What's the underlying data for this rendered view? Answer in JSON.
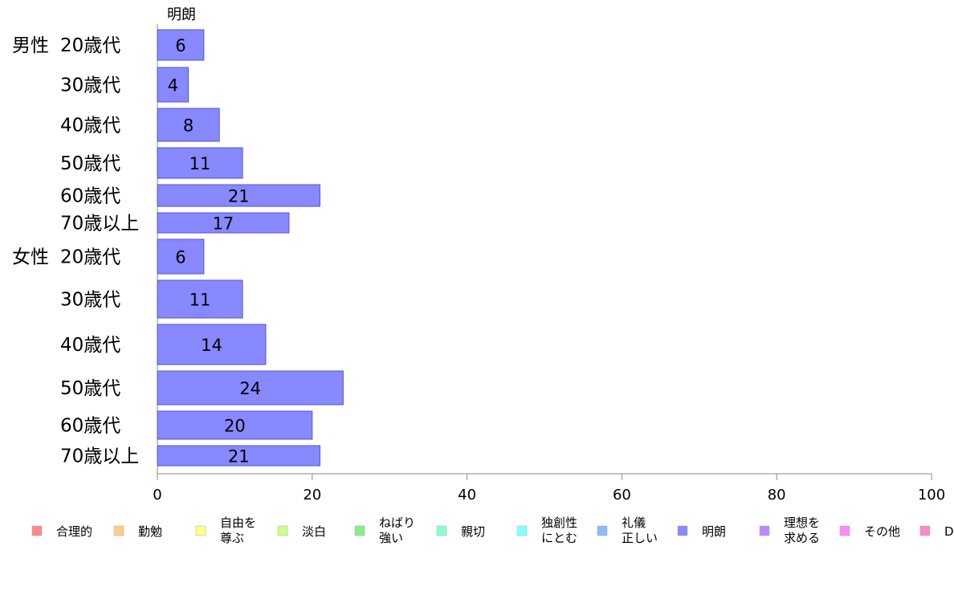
{
  "chart_data": {
    "type": "bar",
    "orientation": "horizontal",
    "title": "",
    "series_title": "明朗",
    "groups": [
      {
        "name": "男性",
        "categories": [
          "20歳代",
          "30歳代",
          "40歳代",
          "50歳代",
          "60歳代",
          "70歳以上"
        ]
      },
      {
        "name": "女性",
        "categories": [
          "20歳代",
          "30歳代",
          "40歳代",
          "50歳代",
          "60歳代",
          "70歳以上"
        ]
      }
    ],
    "series": [
      {
        "name": "明朗",
        "values": [
          6,
          4,
          8,
          11,
          21,
          17,
          6,
          11,
          14,
          24,
          20,
          21
        ]
      }
    ],
    "xlim": [
      0,
      100
    ],
    "xticks": [
      0,
      20,
      40,
      60,
      80,
      100
    ],
    "bar_color": "#8888ff",
    "bar_stroke": "#5555cc",
    "grid": false,
    "legend_position": "bottom",
    "legend": [
      {
        "label": "合理的",
        "color": "#ff8888"
      },
      {
        "label": "勤勉",
        "color": "#ffcc88"
      },
      {
        "label": "自由を\n尊ぶ",
        "color": "#ffff88"
      },
      {
        "label": "淡白",
        "color": "#ccff88"
      },
      {
        "label": "ねばり\n強い",
        "color": "#88ee88"
      },
      {
        "label": "親切",
        "color": "#88ffcc"
      },
      {
        "label": "独創性\nにとむ",
        "color": "#88ffff"
      },
      {
        "label": "礼儀\n正しい",
        "color": "#88bbff"
      },
      {
        "label": "明朗",
        "color": "#8888ff"
      },
      {
        "label": "理想を\n求める",
        "color": "#bb88ff"
      },
      {
        "label": "その他",
        "color": "#ff88ff"
      },
      {
        "label": "D",
        "color": "#ff88cc"
      }
    ]
  }
}
